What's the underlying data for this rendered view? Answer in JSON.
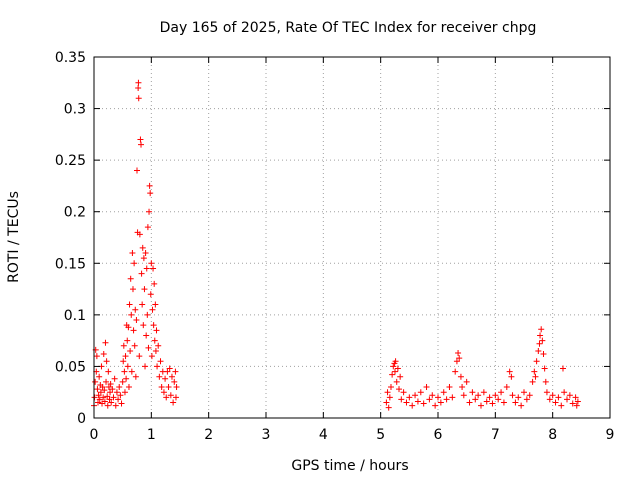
{
  "chart_data": {
    "type": "scatter",
    "title": "Day 165 of 2025, Rate Of TEC Index for receiver chpg",
    "xlabel": "GPS time / hours",
    "ylabel": "ROTI / TECUs",
    "xlim": [
      0,
      9
    ],
    "ylim": [
      0,
      0.35
    ],
    "xticks": [
      0,
      1,
      2,
      3,
      4,
      5,
      6,
      7,
      8,
      9
    ],
    "yticks": [
      0,
      0.05,
      0.1,
      0.15,
      0.2,
      0.25,
      0.3,
      0.35
    ],
    "xtick_labels": [
      "0",
      "1",
      "2",
      "3",
      "4",
      "5",
      "6",
      "7",
      "8",
      "9"
    ],
    "ytick_labels": [
      "0",
      "0.05",
      "0.1",
      "0.15",
      "0.2",
      "0.25",
      "0.3",
      "0.35"
    ],
    "grid": true,
    "marker": "plus",
    "color": "#ff0000",
    "series": [
      {
        "values_description_free": true,
        "points": [
          [
            0.0,
            0.012
          ],
          [
            0.01,
            0.02
          ],
          [
            0.02,
            0.035
          ],
          [
            0.03,
            0.066
          ],
          [
            0.04,
            0.045
          ],
          [
            0.05,
            0.06
          ],
          [
            0.06,
            0.028
          ],
          [
            0.07,
            0.015
          ],
          [
            0.08,
            0.022
          ],
          [
            0.09,
            0.04
          ],
          [
            0.1,
            0.018
          ],
          [
            0.11,
            0.032
          ],
          [
            0.12,
            0.025
          ],
          [
            0.13,
            0.05
          ],
          [
            0.14,
            0.014
          ],
          [
            0.15,
            0.03
          ],
          [
            0.16,
            0.02
          ],
          [
            0.17,
            0.062
          ],
          [
            0.18,
            0.027
          ],
          [
            0.19,
            0.016
          ],
          [
            0.2,
            0.073
          ],
          [
            0.21,
            0.035
          ],
          [
            0.22,
            0.055
          ],
          [
            0.23,
            0.021
          ],
          [
            0.24,
            0.012
          ],
          [
            0.25,
            0.045
          ],
          [
            0.26,
            0.03
          ],
          [
            0.27,
            0.018
          ],
          [
            0.28,
            0.025
          ],
          [
            0.29,
            0.033
          ],
          [
            0.3,
            0.015
          ],
          [
            0.32,
            0.028
          ],
          [
            0.34,
            0.02
          ],
          [
            0.36,
            0.038
          ],
          [
            0.38,
            0.012
          ],
          [
            0.4,
            0.025
          ],
          [
            0.42,
            0.018
          ],
          [
            0.44,
            0.03
          ],
          [
            0.46,
            0.022
          ],
          [
            0.48,
            0.014
          ],
          [
            0.5,
            0.035
          ],
          [
            0.51,
            0.055
          ],
          [
            0.52,
            0.07
          ],
          [
            0.53,
            0.045
          ],
          [
            0.54,
            0.025
          ],
          [
            0.55,
            0.06
          ],
          [
            0.56,
            0.038
          ],
          [
            0.57,
            0.09
          ],
          [
            0.58,
            0.075
          ],
          [
            0.59,
            0.05
          ],
          [
            0.6,
            0.088
          ],
          [
            0.61,
            0.03
          ],
          [
            0.62,
            0.11
          ],
          [
            0.63,
            0.065
          ],
          [
            0.64,
            0.135
          ],
          [
            0.65,
            0.1
          ],
          [
            0.66,
            0.045
          ],
          [
            0.67,
            0.16
          ],
          [
            0.68,
            0.125
          ],
          [
            0.69,
            0.085
          ],
          [
            0.7,
            0.15
          ],
          [
            0.71,
            0.07
          ],
          [
            0.72,
            0.105
          ],
          [
            0.73,
            0.04
          ],
          [
            0.74,
            0.095
          ],
          [
            0.75,
            0.24
          ],
          [
            0.76,
            0.18
          ],
          [
            0.77,
            0.32
          ],
          [
            0.775,
            0.325
          ],
          [
            0.78,
            0.31
          ],
          [
            0.79,
            0.06
          ],
          [
            0.8,
            0.178
          ],
          [
            0.81,
            0.27
          ],
          [
            0.82,
            0.265
          ],
          [
            0.83,
            0.14
          ],
          [
            0.84,
            0.11
          ],
          [
            0.85,
            0.165
          ],
          [
            0.86,
            0.09
          ],
          [
            0.87,
            0.155
          ],
          [
            0.88,
            0.125
          ],
          [
            0.89,
            0.05
          ],
          [
            0.9,
            0.16
          ],
          [
            0.91,
            0.08
          ],
          [
            0.92,
            0.145
          ],
          [
            0.93,
            0.1
          ],
          [
            0.94,
            0.185
          ],
          [
            0.95,
            0.068
          ],
          [
            0.96,
            0.2
          ],
          [
            0.97,
            0.225
          ],
          [
            0.98,
            0.218
          ],
          [
            0.99,
            0.12
          ],
          [
            1.0,
            0.15
          ],
          [
            1.01,
            0.06
          ],
          [
            1.02,
            0.105
          ],
          [
            1.03,
            0.145
          ],
          [
            1.04,
            0.09
          ],
          [
            1.05,
            0.13
          ],
          [
            1.06,
            0.075
          ],
          [
            1.07,
            0.11
          ],
          [
            1.08,
            0.065
          ],
          [
            1.09,
            0.085
          ],
          [
            1.1,
            0.05
          ],
          [
            1.12,
            0.07
          ],
          [
            1.14,
            0.04
          ],
          [
            1.16,
            0.055
          ],
          [
            1.18,
            0.03
          ],
          [
            1.2,
            0.045
          ],
          [
            1.22,
            0.025
          ],
          [
            1.24,
            0.038
          ],
          [
            1.26,
            0.02
          ],
          [
            1.28,
            0.045
          ],
          [
            1.3,
            0.03
          ],
          [
            1.32,
            0.048
          ],
          [
            1.34,
            0.022
          ],
          [
            1.36,
            0.04
          ],
          [
            1.38,
            0.015
          ],
          [
            1.4,
            0.035
          ],
          [
            1.42,
            0.045
          ],
          [
            1.43,
            0.02
          ],
          [
            1.44,
            0.03
          ],
          [
            5.1,
            0.015
          ],
          [
            5.12,
            0.025
          ],
          [
            5.14,
            0.01
          ],
          [
            5.16,
            0.02
          ],
          [
            5.18,
            0.03
          ],
          [
            5.2,
            0.042
          ],
          [
            5.22,
            0.05
          ],
          [
            5.24,
            0.053
          ],
          [
            5.25,
            0.045
          ],
          [
            5.26,
            0.055
          ],
          [
            5.28,
            0.035
          ],
          [
            5.3,
            0.048
          ],
          [
            5.32,
            0.028
          ],
          [
            5.34,
            0.04
          ],
          [
            5.36,
            0.018
          ],
          [
            5.4,
            0.025
          ],
          [
            5.45,
            0.015
          ],
          [
            5.5,
            0.02
          ],
          [
            5.55,
            0.012
          ],
          [
            5.6,
            0.022
          ],
          [
            5.65,
            0.016
          ],
          [
            5.7,
            0.025
          ],
          [
            5.75,
            0.014
          ],
          [
            5.8,
            0.03
          ],
          [
            5.85,
            0.018
          ],
          [
            5.9,
            0.022
          ],
          [
            5.95,
            0.012
          ],
          [
            6.0,
            0.02
          ],
          [
            6.05,
            0.015
          ],
          [
            6.1,
            0.025
          ],
          [
            6.15,
            0.018
          ],
          [
            6.2,
            0.03
          ],
          [
            6.25,
            0.02
          ],
          [
            6.3,
            0.045
          ],
          [
            6.33,
            0.055
          ],
          [
            6.35,
            0.063
          ],
          [
            6.37,
            0.058
          ],
          [
            6.4,
            0.04
          ],
          [
            6.42,
            0.03
          ],
          [
            6.45,
            0.022
          ],
          [
            6.5,
            0.035
          ],
          [
            6.55,
            0.015
          ],
          [
            6.6,
            0.025
          ],
          [
            6.65,
            0.018
          ],
          [
            6.7,
            0.022
          ],
          [
            6.75,
            0.012
          ],
          [
            6.8,
            0.025
          ],
          [
            6.85,
            0.016
          ],
          [
            6.9,
            0.02
          ],
          [
            6.95,
            0.014
          ],
          [
            7.0,
            0.022
          ],
          [
            7.05,
            0.018
          ],
          [
            7.1,
            0.025
          ],
          [
            7.15,
            0.015
          ],
          [
            7.2,
            0.03
          ],
          [
            7.25,
            0.045
          ],
          [
            7.28,
            0.04
          ],
          [
            7.3,
            0.022
          ],
          [
            7.35,
            0.015
          ],
          [
            7.4,
            0.02
          ],
          [
            7.45,
            0.012
          ],
          [
            7.5,
            0.025
          ],
          [
            7.55,
            0.018
          ],
          [
            7.6,
            0.022
          ],
          [
            7.65,
            0.035
          ],
          [
            7.68,
            0.045
          ],
          [
            7.7,
            0.04
          ],
          [
            7.72,
            0.055
          ],
          [
            7.75,
            0.065
          ],
          [
            7.77,
            0.072
          ],
          [
            7.78,
            0.08
          ],
          [
            7.8,
            0.086
          ],
          [
            7.82,
            0.075
          ],
          [
            7.84,
            0.062
          ],
          [
            7.86,
            0.048
          ],
          [
            7.88,
            0.035
          ],
          [
            7.9,
            0.025
          ],
          [
            7.95,
            0.018
          ],
          [
            8.0,
            0.022
          ],
          [
            8.05,
            0.015
          ],
          [
            8.1,
            0.02
          ],
          [
            8.15,
            0.012
          ],
          [
            8.18,
            0.048
          ],
          [
            8.2,
            0.025
          ],
          [
            8.25,
            0.018
          ],
          [
            8.3,
            0.022
          ],
          [
            8.35,
            0.014
          ],
          [
            8.4,
            0.02
          ],
          [
            8.42,
            0.012
          ],
          [
            8.44,
            0.016
          ]
        ]
      }
    ]
  }
}
